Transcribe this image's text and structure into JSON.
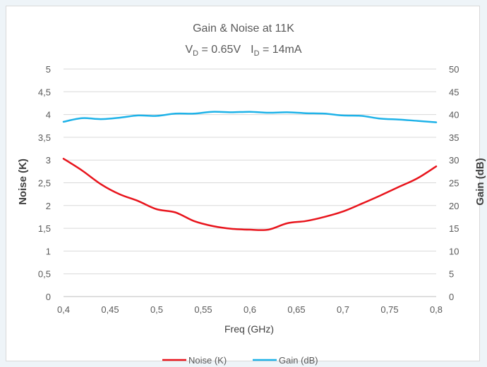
{
  "chart_data": {
    "type": "line",
    "title": "Gain & Noise at 11K",
    "subtitle_parts": {
      "v_main": "V",
      "v_sub": "D",
      "v_rest": " = 0.65V",
      "i_main": "I",
      "i_sub": "D",
      "i_rest": " = 14mA"
    },
    "xlabel": "Freq (GHz)",
    "ylabel_left": "Noise (K)",
    "ylabel_right": "Gain (dB)",
    "xlim": [
      0.4,
      0.8
    ],
    "ylim_left": [
      0,
      5
    ],
    "ylim_right": [
      0,
      50
    ],
    "x_ticks": [
      "0,4",
      "0,45",
      "0,5",
      "0,55",
      "0,6",
      "0,65",
      "0,7",
      "0,75",
      "0,8"
    ],
    "y_left_ticks": [
      "0",
      "0,5",
      "1",
      "1,5",
      "2",
      "2,5",
      "3",
      "3,5",
      "4",
      "4,5",
      "5"
    ],
    "y_right_ticks": [
      "0",
      "5",
      "10",
      "15",
      "20",
      "25",
      "30",
      "35",
      "40",
      "45",
      "50"
    ],
    "grid": "horizontal",
    "legend_position": "bottom",
    "series": [
      {
        "name": "Noise (K)",
        "axis": "left",
        "color": "#e8141c",
        "x": [
          0.4,
          0.42,
          0.44,
          0.46,
          0.48,
          0.5,
          0.52,
          0.54,
          0.56,
          0.58,
          0.6,
          0.62,
          0.64,
          0.66,
          0.68,
          0.7,
          0.72,
          0.74,
          0.76,
          0.78,
          0.8
        ],
        "values": [
          3.03,
          2.77,
          2.47,
          2.25,
          2.1,
          1.92,
          1.85,
          1.66,
          1.55,
          1.49,
          1.47,
          1.47,
          1.61,
          1.66,
          1.75,
          1.87,
          2.04,
          2.22,
          2.41,
          2.6,
          2.86
        ]
      },
      {
        "name": "Gain (dB)",
        "axis": "right",
        "color": "#1eb2e8",
        "x": [
          0.4,
          0.42,
          0.44,
          0.46,
          0.48,
          0.5,
          0.52,
          0.54,
          0.56,
          0.58,
          0.6,
          0.62,
          0.64,
          0.66,
          0.68,
          0.7,
          0.72,
          0.74,
          0.76,
          0.78,
          0.8
        ],
        "values": [
          38.4,
          39.2,
          39.0,
          39.3,
          39.8,
          39.7,
          40.2,
          40.2,
          40.6,
          40.5,
          40.6,
          40.4,
          40.5,
          40.3,
          40.2,
          39.8,
          39.7,
          39.1,
          38.9,
          38.6,
          38.3
        ]
      }
    ]
  }
}
